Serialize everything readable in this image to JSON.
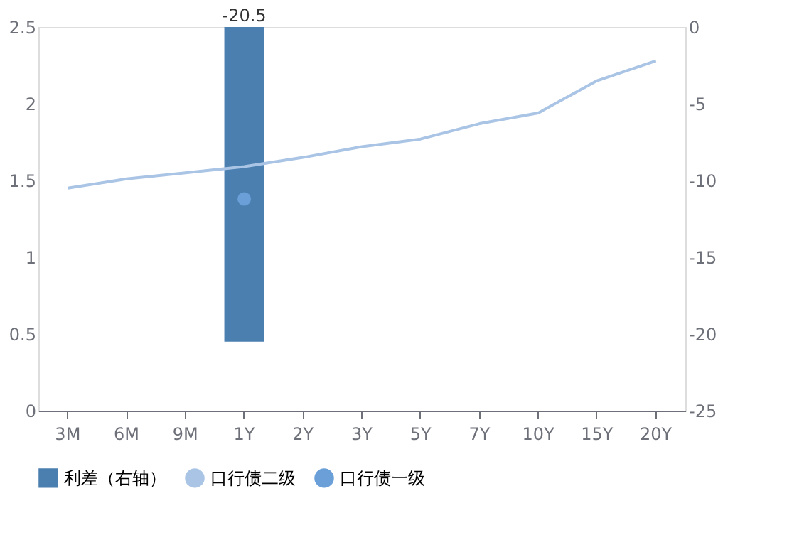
{
  "chart_data": {
    "type": "line",
    "categories": [
      "3M",
      "6M",
      "9M",
      "1Y",
      "2Y",
      "3Y",
      "5Y",
      "7Y",
      "10Y",
      "15Y",
      "20Y"
    ],
    "series": [
      {
        "name": "利差（右轴）",
        "type": "bar",
        "axis": "y2",
        "color": "#4a7fb0",
        "values": [
          null,
          null,
          null,
          -20.5,
          null,
          null,
          null,
          null,
          null,
          null,
          null
        ],
        "value_labels": [
          null,
          null,
          null,
          "-20.5",
          null,
          null,
          null,
          null,
          null,
          null,
          null
        ]
      },
      {
        "name": "口行债二级",
        "marker": "none",
        "color": "#a9c4e4",
        "values": [
          1.45,
          1.51,
          1.55,
          1.59,
          1.65,
          1.72,
          1.77,
          1.87,
          1.94,
          2.15,
          2.28
        ]
      },
      {
        "name": "口行债一级",
        "type": "scatter",
        "color": "#6a9fd8",
        "values": [
          null,
          null,
          null,
          1.38,
          null,
          null,
          null,
          null,
          null,
          null,
          null
        ]
      }
    ],
    "ylim": [
      0,
      2.5
    ],
    "yticks": [
      0,
      0.5,
      1,
      1.5,
      2,
      2.5
    ],
    "y2lim": [
      -25,
      0
    ],
    "y2ticks": [
      -25,
      -20,
      -15,
      -10,
      -5,
      0
    ],
    "grid": false,
    "legend": "bottom"
  }
}
